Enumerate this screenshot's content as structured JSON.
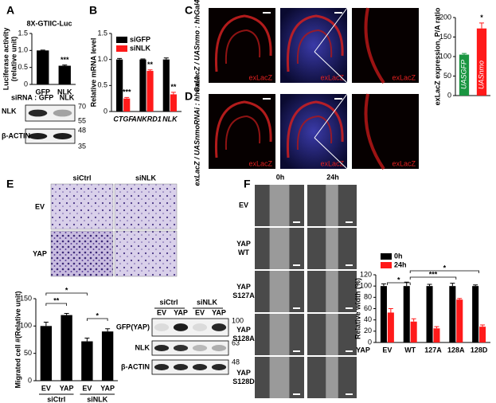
{
  "chart_data": [
    {
      "type": "bar",
      "title": "8X-GTIIC-Luc",
      "ylabel": [
        "Luciferase activity",
        "(relative unit)"
      ],
      "categories": [
        "GFP",
        "NLK"
      ],
      "values": [
        1.0,
        0.55
      ],
      "errors": [
        0.01,
        0.02
      ],
      "color": "#000000",
      "ylim": [
        0,
        1.5
      ],
      "yticks": [
        0,
        0.5,
        {
          "value": 1,
          "label": "1.0"
        },
        1.5
      ],
      "annotations": [
        "***"
      ]
    },
    {
      "type": "bar",
      "ylabel": [
        "Relative mRNA level"
      ],
      "categories": [
        "CTGF",
        "ANKRD1",
        "NLK"
      ],
      "series": [
        {
          "name": "siGFP",
          "color": "#000000",
          "values": [
            1.0,
            1.0,
            1.0
          ],
          "errors": [
            0.02,
            0.01,
            0.03
          ]
        },
        {
          "name": "siNLK",
          "color": "#ff1a1a",
          "values": [
            0.25,
            0.78,
            0.33
          ],
          "errors": [
            0.02,
            0.02,
            0.04
          ]
        }
      ],
      "ylim": [
        0,
        1.5
      ],
      "yticks": [
        0,
        0.5,
        {
          "value": 1,
          "label": "1.0"
        },
        1.5
      ],
      "legend": "upper left",
      "annotations": [
        "***",
        "**",
        "**"
      ]
    },
    {
      "type": "bar",
      "ylabel": [
        "exLacZ expression, P/A ratio"
      ],
      "categories": [
        "UASGFP",
        "UASnmo"
      ],
      "values": [
        105,
        172
      ],
      "errors": [
        3,
        14
      ],
      "colors": [
        "#1a9641",
        "#ff1a1a"
      ],
      "category_labels_inside": true,
      "ylim": [
        0,
        200
      ],
      "yticks": [
        0,
        50,
        100,
        150,
        200
      ],
      "annotations": [
        "*"
      ]
    },
    {
      "type": "bar",
      "ylabel": [
        "Migrated cell #(Relative unit)"
      ],
      "categories": [
        "EV",
        "YAP",
        "EV",
        "YAP"
      ],
      "groups": [
        "siCtrl",
        "siNLK"
      ],
      "values": [
        100,
        120,
        72,
        90
      ],
      "errors": [
        7,
        3,
        6,
        5
      ],
      "color": "#000000",
      "ylim": [
        0,
        150
      ],
      "yticks": [
        0,
        50,
        100,
        150
      ],
      "annotations": [
        "**",
        "*",
        "*"
      ]
    },
    {
      "type": "bar",
      "ylabel": [
        "Relative width (%)"
      ],
      "xlabel": "YAP",
      "categories": [
        "EV",
        "WT",
        "127A",
        "128A",
        "128D"
      ],
      "series": [
        {
          "name": "0h",
          "color": "#000000",
          "values": [
            100,
            100,
            100,
            100,
            100
          ],
          "errors": [
            4,
            7,
            3,
            5,
            2
          ]
        },
        {
          "name": "24h",
          "color": "#ff1a1a",
          "values": [
            53,
            37,
            25,
            76,
            28
          ],
          "errors": [
            7,
            5,
            3,
            2,
            3
          ]
        }
      ],
      "ylim": [
        0,
        120
      ],
      "yticks": [
        0,
        20,
        40,
        60,
        80,
        100,
        120
      ],
      "legend": "upper left",
      "annotations": [
        "*",
        "***",
        "*"
      ]
    }
  ],
  "panels": {
    "A": {
      "label": "A",
      "blot_lane_title": "siRNA :",
      "lanes": [
        "GFP",
        "NLK"
      ],
      "blots": [
        {
          "name": "NLK",
          "markers": [
            "70",
            "55"
          ]
        },
        {
          "name": "β-ACTIN",
          "markers": [
            "48",
            "35"
          ]
        }
      ]
    },
    "B": {
      "label": "B"
    },
    "C": {
      "label": "C",
      "genotype": "exLacZ / UASnmo : hhGal4",
      "stains": [
        "exLacZ",
        "exLacZ",
        "exLacZ"
      ]
    },
    "D": {
      "label": "D",
      "genotype": "exLacZ / UASnmoRNAi : hhGal4",
      "stains": [
        "exLacZ",
        "exLacZ",
        "exLacZ"
      ]
    },
    "E": {
      "label": "E",
      "columns": [
        "siCtrl",
        "siNLK"
      ],
      "rows": [
        "EV",
        "YAP"
      ],
      "blot_groups": [
        "siCtrl",
        "siNLK"
      ],
      "lanes": [
        "EV",
        "YAP",
        "EV",
        "YAP"
      ],
      "blots": [
        {
          "name": "GFP(YAP)",
          "markers": [
            "100"
          ]
        },
        {
          "name": "NLK",
          "markers": [
            "63"
          ]
        },
        {
          "name": "β-ACTIN",
          "markers": [
            "48"
          ]
        }
      ]
    },
    "F": {
      "label": "F",
      "columns": [
        "0h",
        "24h"
      ],
      "rows": [
        [
          "EV"
        ],
        [
          "YAP",
          "WT"
        ],
        [
          "YAP",
          "S127A"
        ],
        [
          "YAP",
          "S128A"
        ],
        [
          "YAP",
          "S128D"
        ]
      ]
    }
  }
}
